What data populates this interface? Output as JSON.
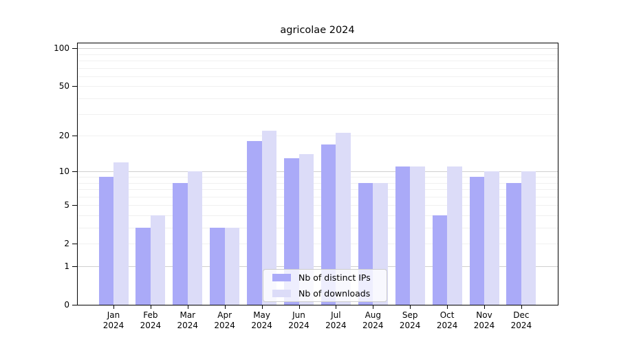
{
  "title": "agricolae 2024",
  "colors": {
    "ips": "#aaaaf8",
    "downloads": "#dcdcf8",
    "grid_major": "#cfcfcf",
    "grid_minor": "#f0f0f0",
    "axis": "#000000",
    "legend_border": "#cccccc"
  },
  "legend": {
    "items": [
      {
        "label": "Nb of distinct IPs",
        "series": "ips"
      },
      {
        "label": "Nb of downloads",
        "series": "downloads"
      }
    ]
  },
  "chart_data": {
    "type": "bar",
    "title": "agricolae 2024",
    "categories": [
      "Jan 2024",
      "Feb 2024",
      "Mar 2024",
      "Apr 2024",
      "May 2024",
      "Jun 2024",
      "Jul 2024",
      "Aug 2024",
      "Sep 2024",
      "Oct 2024",
      "Nov 2024",
      "Dec 2024"
    ],
    "series": [
      {
        "name": "Nb of distinct IPs",
        "key": "ips",
        "color": "#aaaaf8",
        "values": [
          9,
          3,
          8,
          3,
          18,
          13,
          17,
          8,
          11,
          4,
          9,
          8
        ]
      },
      {
        "name": "Nb of downloads",
        "key": "downloads",
        "color": "#dcdcf8",
        "values": [
          12,
          4,
          10,
          3,
          22,
          14,
          21,
          8,
          11,
          11,
          10,
          10
        ]
      }
    ],
    "xlabel": "",
    "ylabel": "",
    "y_scale": "log1p",
    "y_ticks": [
      0,
      1,
      2,
      5,
      10,
      20,
      50,
      100
    ],
    "y_major_gridlines": [
      1,
      10,
      100
    ],
    "y_minor_gridlines": [
      2,
      3,
      4,
      5,
      6,
      7,
      8,
      9,
      20,
      30,
      40,
      50,
      60,
      70,
      80,
      90
    ],
    "ylim": [
      0,
      110
    ],
    "grid": "horizontal",
    "legend_position": "lower-center"
  }
}
